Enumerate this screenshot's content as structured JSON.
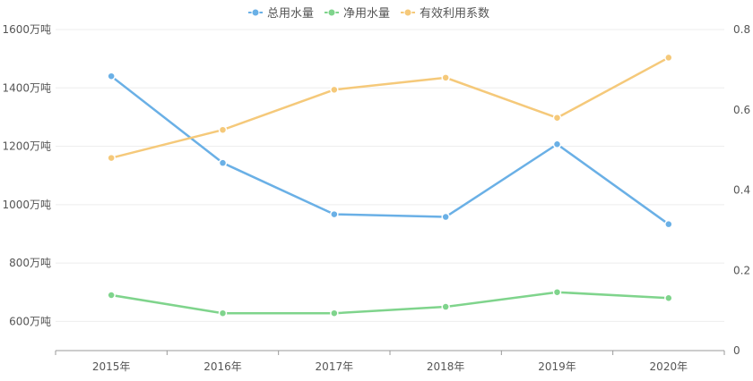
{
  "chart_data": {
    "type": "line",
    "title": "",
    "categories": [
      "2015年",
      "2016年",
      "2017年",
      "2018年",
      "2019年",
      "2020年"
    ],
    "y_left": {
      "min": 500,
      "max": 1600,
      "ticks": [
        600,
        800,
        1000,
        1200,
        1400,
        1600
      ],
      "tick_labels": [
        "600万吨",
        "800万吨",
        "1000万吨",
        "1200万吨",
        "1400万吨",
        "1600万吨"
      ]
    },
    "y_right": {
      "min": 0,
      "max": 0.8,
      "ticks": [
        0,
        0.2,
        0.4,
        0.6,
        0.8
      ],
      "tick_labels": [
        "0",
        "0.2",
        "0.4",
        "0.6",
        "0.8"
      ]
    },
    "series": [
      {
        "name": "总用水量",
        "axis": "left",
        "color": "#6ab0e6",
        "values": [
          1440,
          1143,
          967,
          958,
          1207,
          933
        ]
      },
      {
        "name": "净用水量",
        "axis": "left",
        "color": "#7fd48c",
        "values": [
          690,
          628,
          628,
          650,
          700,
          680
        ]
      },
      {
        "name": "有效利用系数",
        "axis": "right",
        "color": "#f5c97a",
        "values": [
          0.48,
          0.55,
          0.65,
          0.68,
          0.58,
          0.73
        ]
      }
    ],
    "legend_position": "top-center",
    "grid": true
  }
}
